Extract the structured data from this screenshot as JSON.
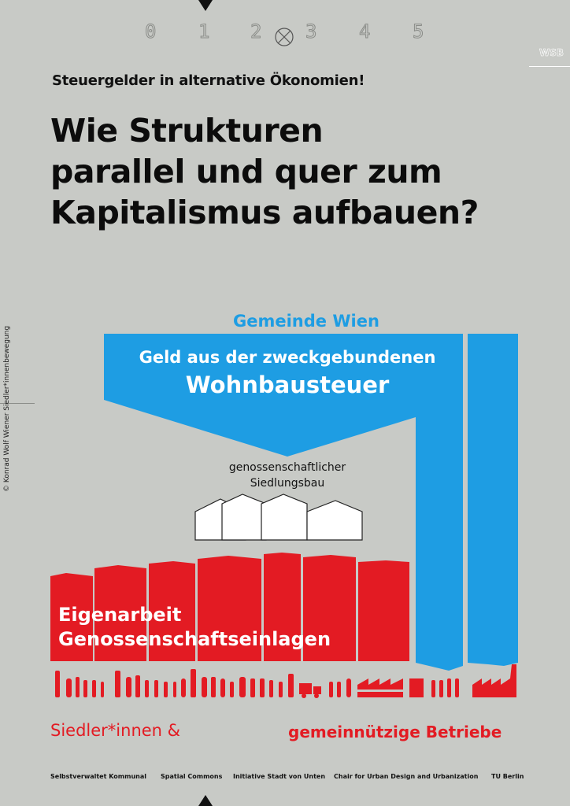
{
  "scale": {
    "numbers": [
      "0",
      "1",
      "2",
      "3",
      "4",
      "5"
    ]
  },
  "badge": {
    "text": "WSB"
  },
  "subtitle": "Steuergelder in alternative Ökonomien!",
  "title": {
    "line1": "Wie Strukturen",
    "line2": "parallel und quer zum",
    "line3": "Kapitalismus aufbauen?"
  },
  "side_credit": "© Konrad Wolf    Wiener Siedler*innenbewegung",
  "diagram": {
    "gemeinde": "Gemeinde Wien",
    "blue_line1": "Geld aus der zweckgebundenen",
    "blue_line2": "Wohnbausteuer",
    "houses_line1": "genossenschaftlicher",
    "houses_line2": "Siedlungsbau",
    "red_line1": "Eigenarbeit",
    "red_line2": "Genossenschaftseinlagen",
    "bottom_left": "Siedler*innen &",
    "bottom_right": "gemeinnützige Betriebe"
  },
  "colors": {
    "blue": "#1e9de3",
    "red": "#e31b23",
    "background": "#c8cac6"
  },
  "footer": [
    "Selbstverwaltet Kommunal",
    "Spatial Commons",
    "Initiative Stadt von Unten",
    "Chair for Urban Design and Urbanization",
    "TU Berlin"
  ]
}
